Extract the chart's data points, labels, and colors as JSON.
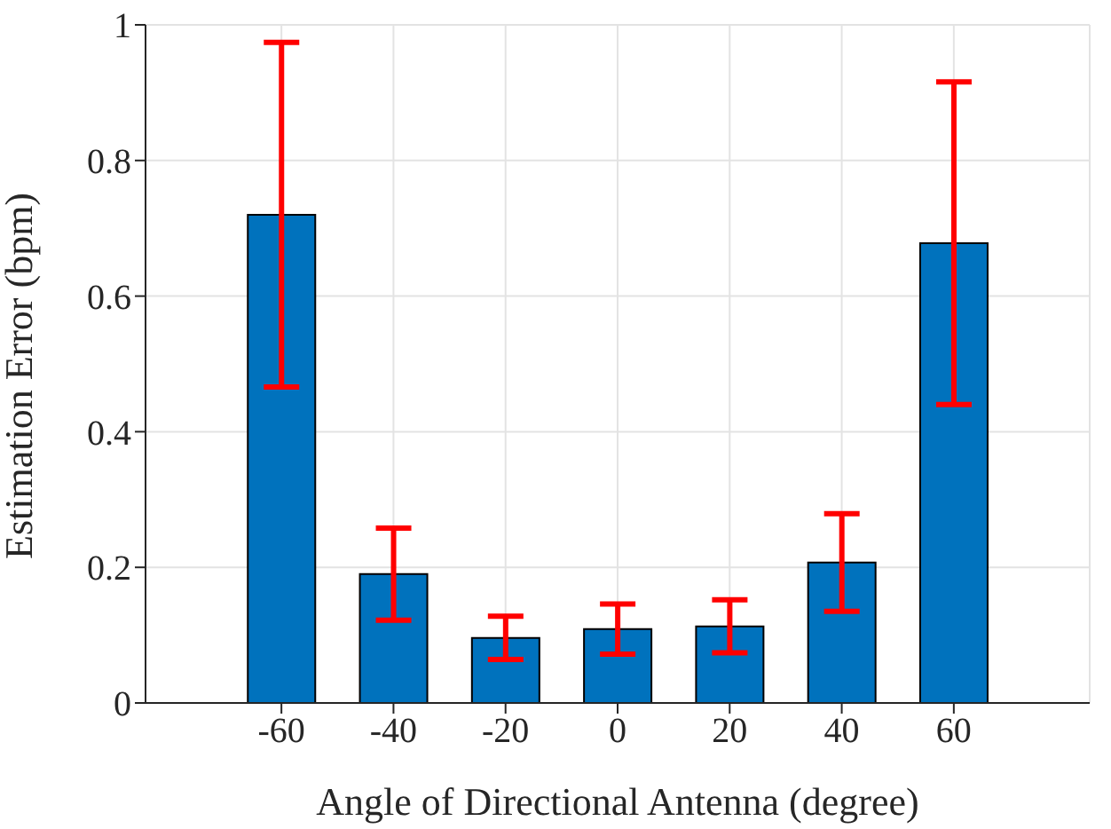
{
  "chart_data": {
    "type": "bar",
    "xlabel": "Angle of Directional Antenna (degree)",
    "ylabel": "Estimation Error (bpm)",
    "categories": [
      "-60",
      "-40",
      "-20",
      "0",
      "20",
      "40",
      "60"
    ],
    "values": [
      0.72,
      0.19,
      0.096,
      0.109,
      0.113,
      0.207,
      0.678
    ],
    "errors": [
      0.254,
      0.068,
      0.032,
      0.037,
      0.039,
      0.072,
      0.238
    ],
    "color": "#0072bd",
    "ylim": [
      0,
      1
    ],
    "yticks": [
      0,
      0.2,
      0.4,
      0.6,
      0.8,
      1
    ],
    "grid": true
  }
}
